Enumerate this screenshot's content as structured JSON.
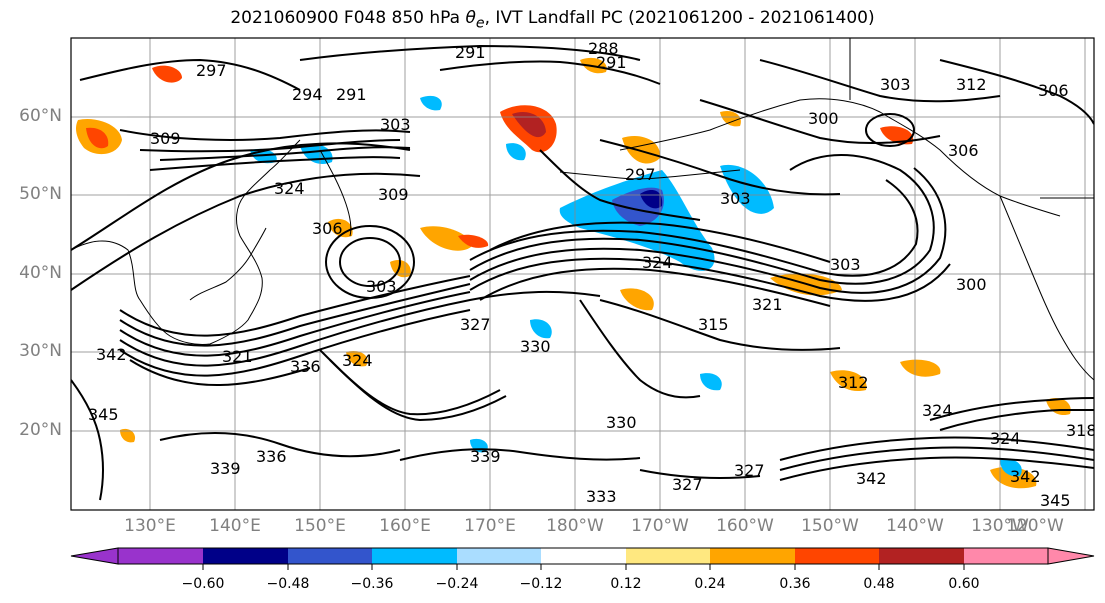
{
  "title_main": "2021060900 F048 850 hPa ",
  "title_symbol": "θ",
  "title_sub": "e",
  "title_rest": ", IVT Landfall PC (2021061200 - 2021061400)",
  "lat_labels": [
    "60°N",
    "50°N",
    "40°N",
    "30°N",
    "20°N"
  ],
  "lon_labels": [
    "130°E",
    "140°E",
    "150°E",
    "160°E",
    "170°E",
    "180°W",
    "170°W",
    "160°W",
    "150°W",
    "140°W",
    "130°W",
    "120°W"
  ],
  "contour_labels": [
    "291",
    "288",
    "291",
    "297",
    "294",
    "291",
    "303",
    "309",
    "324",
    "306",
    "309",
    "303",
    "297",
    "303",
    "300",
    "306",
    "312",
    "303",
    "306",
    "324",
    "303",
    "321",
    "315",
    "327",
    "330",
    "321",
    "300",
    "336",
    "324",
    "342",
    "345",
    "339",
    "336",
    "339",
    "330",
    "327",
    "342",
    "333",
    "327",
    "345",
    "324",
    "342",
    "318",
    "312",
    "324"
  ],
  "colorbar": {
    "ticks": [
      "−0.60",
      "−0.48",
      "−0.36",
      "−0.24",
      "−0.12",
      "0.12",
      "0.24",
      "0.36",
      "0.48",
      "0.60"
    ],
    "colors": [
      "#9933cc",
      "#000088",
      "#3355cc",
      "#00bbff",
      "#aaddff",
      "#ffffff",
      "#ffe880",
      "#ffa500",
      "#ff4500",
      "#b22222",
      "#ff88aa"
    ]
  }
}
